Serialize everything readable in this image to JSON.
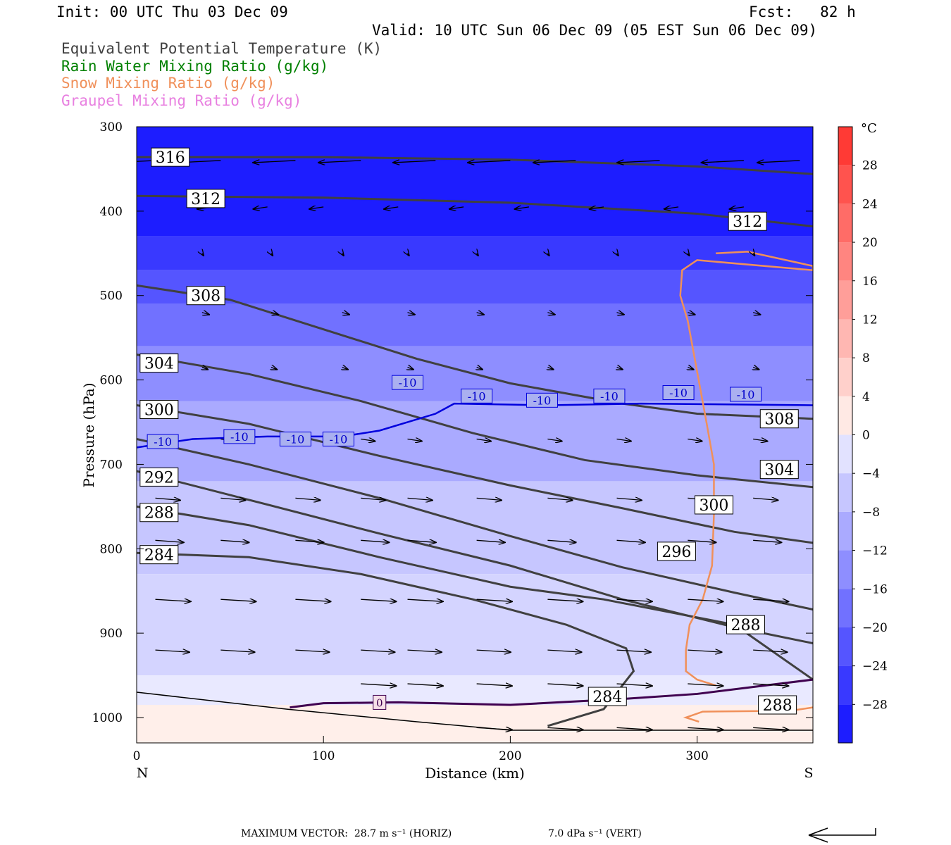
{
  "header": {
    "init": "Init: 00 UTC Thu 03 Dec 09",
    "fcst": "Fcst:   82 h",
    "valid": "Valid: 10 UTC Sun 06 Dec 09 (05 EST Sun 06 Dec 09)"
  },
  "legend": [
    {
      "text": "Equivalent Potential Temperature (K)",
      "color": "#404040"
    },
    {
      "text": "Rain Water Mixing Ratio (g/kg)",
      "color": "#008000"
    },
    {
      "text": "Snow Mixing Ratio (g/kg)",
      "color": "#f0905a"
    },
    {
      "text": "Graupel Mixing Ratio (g/kg)",
      "color": "#e880e0"
    }
  ],
  "chart_data": {
    "type": "cross-section",
    "xlabel": "Distance (km)",
    "ylabel": "Pressure (hPa)",
    "xlim": [
      0,
      362
    ],
    "ylim": [
      1030,
      300
    ],
    "xticks": [
      0,
      100,
      200,
      300
    ],
    "yticks": [
      300,
      400,
      500,
      600,
      700,
      800,
      900,
      1000
    ],
    "x_end_labels": {
      "left": "N",
      "right": "S"
    },
    "colorbar": {
      "unit": "°C",
      "min": -32,
      "max": 32,
      "step": 4,
      "labels": [
        28,
        24,
        20,
        16,
        12,
        8,
        4,
        0,
        -4,
        -8,
        -12,
        -16,
        -20,
        -24,
        -28
      ]
    },
    "temperature_fill_bands_celsius": [
      {
        "x": [
          0,
          362
        ],
        "p_top": 300,
        "p_bot": 430,
        "t": -30
      },
      {
        "x": [
          0,
          362
        ],
        "p_top": 430,
        "p_bot": 470,
        "t": -26
      },
      {
        "x": [
          0,
          362
        ],
        "p_top": 470,
        "p_bot": 510,
        "t": -22
      },
      {
        "x": [
          0,
          362
        ],
        "p_top": 510,
        "p_bot": 560,
        "t": -18
      },
      {
        "x": [
          0,
          362
        ],
        "p_top": 560,
        "p_bot": 625,
        "t": -14
      },
      {
        "x": [
          0,
          362
        ],
        "p_top": 625,
        "p_bot": 720,
        "t": -10
      },
      {
        "x": [
          0,
          362
        ],
        "p_top": 720,
        "p_bot": 830,
        "t": -6
      },
      {
        "x": [
          0,
          362
        ],
        "p_top": 830,
        "p_bot": 950,
        "t": -4
      },
      {
        "x": [
          0,
          362
        ],
        "p_top": 950,
        "p_bot": 985,
        "t": -1
      },
      {
        "x": [
          0,
          362
        ],
        "p_top": 985,
        "p_bot": 1030,
        "t": 1
      }
    ],
    "theta_e_contours_K": [
      {
        "value": 316,
        "points": [
          [
            0,
            336
          ],
          [
            100,
            336
          ],
          [
            200,
            339
          ],
          [
            300,
            347
          ],
          [
            362,
            356
          ]
        ],
        "labels": [
          [
            18,
            336
          ]
        ]
      },
      {
        "value": 312,
        "points": [
          [
            0,
            382
          ],
          [
            100,
            384
          ],
          [
            200,
            390
          ],
          [
            300,
            403
          ],
          [
            362,
            418
          ]
        ],
        "labels": [
          [
            37,
            385
          ],
          [
            327,
            412
          ]
        ]
      },
      {
        "value": 308,
        "points": [
          [
            0,
            488
          ],
          [
            50,
            505
          ],
          [
            100,
            540
          ],
          [
            150,
            575
          ],
          [
            200,
            604
          ],
          [
            260,
            628
          ],
          [
            300,
            640
          ],
          [
            362,
            646
          ]
        ],
        "labels": [
          [
            37,
            500
          ],
          [
            344,
            646
          ]
        ]
      },
      {
        "value": 304,
        "points": [
          [
            0,
            570
          ],
          [
            60,
            593
          ],
          [
            120,
            625
          ],
          [
            180,
            663
          ],
          [
            240,
            695
          ],
          [
            300,
            713
          ],
          [
            362,
            727
          ]
        ],
        "labels": [
          [
            12,
            580
          ],
          [
            344,
            706
          ]
        ]
      },
      {
        "value": 300,
        "points": [
          [
            0,
            630
          ],
          [
            60,
            652
          ],
          [
            130,
            690
          ],
          [
            200,
            725
          ],
          [
            260,
            752
          ],
          [
            320,
            780
          ],
          [
            362,
            793
          ]
        ],
        "labels": [
          [
            12,
            635
          ],
          [
            309,
            748
          ]
        ]
      },
      {
        "value": 296,
        "points": [
          [
            0,
            670
          ],
          [
            60,
            700
          ],
          [
            130,
            740
          ],
          [
            200,
            785
          ],
          [
            260,
            822
          ],
          [
            320,
            852
          ],
          [
            362,
            872
          ]
        ],
        "labels": [
          [
            289,
            803
          ]
        ]
      },
      {
        "value": 292,
        "points": [
          [
            0,
            708
          ],
          [
            60,
            742
          ],
          [
            130,
            782
          ],
          [
            200,
            820
          ],
          [
            260,
            860
          ],
          [
            320,
            893
          ],
          [
            362,
            912
          ]
        ],
        "labels": [
          [
            12,
            715
          ]
        ]
      },
      {
        "value": 288,
        "points": [
          [
            0,
            750
          ],
          [
            60,
            772
          ],
          [
            130,
            810
          ],
          [
            200,
            845
          ],
          [
            250,
            860
          ],
          [
            320,
            890
          ],
          [
            362,
            955
          ]
        ],
        "labels": [
          [
            12,
            757
          ],
          [
            326,
            890
          ],
          [
            343,
            985
          ]
        ]
      },
      {
        "value": 284,
        "points": [
          [
            0,
            805
          ],
          [
            60,
            810
          ],
          [
            120,
            830
          ],
          [
            180,
            860
          ],
          [
            230,
            890
          ],
          [
            262,
            918
          ],
          [
            266,
            945
          ],
          [
            250,
            990
          ],
          [
            220,
            1010
          ]
        ],
        "labels": [
          [
            12,
            807
          ],
          [
            252,
            975
          ]
        ]
      }
    ],
    "isotherm_minus10": {
      "value": -10,
      "color": "#0000dd",
      "points": [
        [
          0,
          680
        ],
        [
          30,
          670
        ],
        [
          70,
          667
        ],
        [
          110,
          667
        ],
        [
          130,
          660
        ],
        [
          160,
          640
        ],
        [
          170,
          628
        ],
        [
          220,
          630
        ],
        [
          270,
          628
        ],
        [
          362,
          630
        ]
      ],
      "labels": [
        [
          14,
          673
        ],
        [
          55,
          667
        ],
        [
          85,
          670
        ],
        [
          108,
          670
        ],
        [
          145,
          603
        ],
        [
          182,
          619
        ],
        [
          217,
          624
        ],
        [
          253,
          619
        ],
        [
          290,
          615
        ],
        [
          326,
          617
        ]
      ]
    },
    "freezing_level_purple": {
      "value": 0,
      "color": "#400050",
      "points": [
        [
          82,
          988
        ],
        [
          100,
          983
        ],
        [
          140,
          982
        ],
        [
          200,
          985
        ],
        [
          260,
          978
        ],
        [
          300,
          972
        ],
        [
          362,
          955
        ]
      ],
      "labels": [
        [
          130,
          982
        ]
      ]
    },
    "ground_line": [
      [
        0,
        970
      ],
      [
        80,
        990
      ],
      [
        150,
        1005
      ],
      [
        200,
        1015
      ],
      [
        362,
        1015
      ]
    ],
    "snow_mixing_ratio_contour": {
      "color": "#f0905a",
      "points": [
        [
          301,
          1005
        ],
        [
          294,
          1000
        ],
        [
          303,
          993
        ],
        [
          350,
          992
        ],
        [
          362,
          988
        ]
      ],
      "labels": [
        [
          310,
          783
        ]
      ]
    },
    "wind_vectors": "arrows showing northerly flow aloft (westward) and southerly/eastward flow below 600 hPa",
    "footer": {
      "max_vector": "MAXIMUM VECTOR:  28.7 m s⁻¹ (HORIZ)",
      "vert": "7.0 dPa s⁻¹ (VERT)"
    }
  }
}
